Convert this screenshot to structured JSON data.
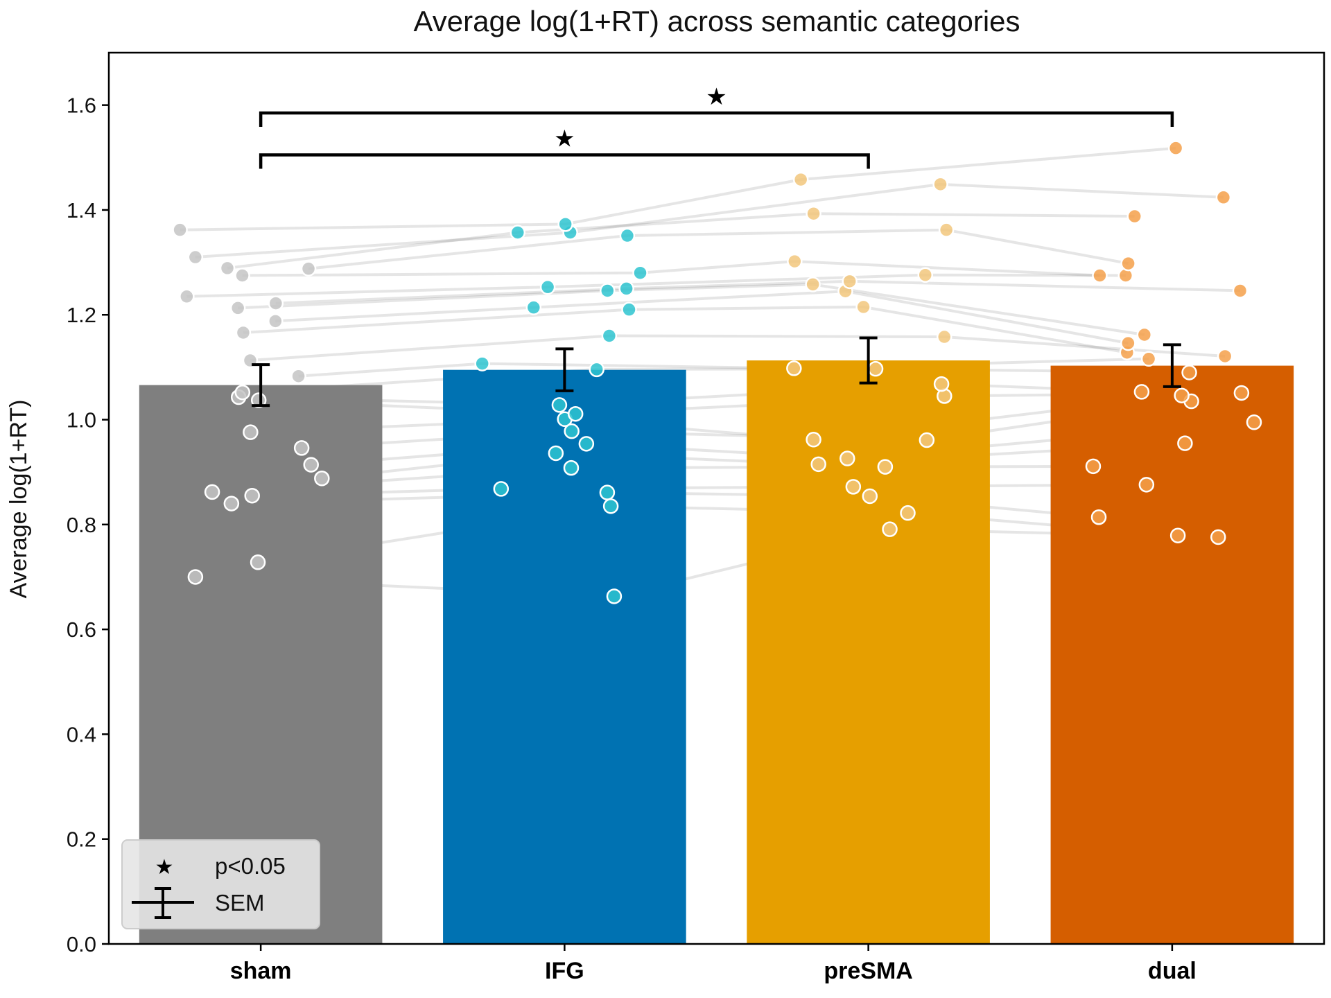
{
  "chart_data": {
    "type": "bar",
    "title": "Average log(1+RT) across semantic categories",
    "xlabel": "",
    "ylabel": "Average log(1+RT)",
    "ylim": [
      0,
      1.7
    ],
    "yticks": [
      "0.0",
      "0.2",
      "0.4",
      "0.6",
      "0.8",
      "1.0",
      "1.2",
      "1.4",
      "1.6"
    ],
    "categories": [
      "sham",
      "IFG",
      "preSMA",
      "dual"
    ],
    "values": [
      1.066,
      1.095,
      1.113,
      1.103
    ],
    "sem": [
      0.039,
      0.04,
      0.043,
      0.04
    ],
    "bar_colors": [
      "#7f7f7f",
      "#0072b2",
      "#e69f00",
      "#d55e00"
    ],
    "point_colors": [
      "#c4c4c4",
      "#2ec4d0",
      "#f2c77c",
      "#f5a04a"
    ],
    "subject_series": {
      "sham": [
        0.7,
        0.728,
        0.84,
        0.855,
        0.862,
        0.888,
        0.914,
        0.946,
        0.976,
        1.037,
        1.043,
        1.052,
        1.083,
        1.113,
        1.166,
        1.188,
        1.213,
        1.222,
        1.235,
        1.275,
        1.288,
        1.289,
        1.31,
        1.362
      ],
      "IFG": [
        0.663,
        0.835,
        0.861,
        0.868,
        0.908,
        0.936,
        0.954,
        0.978,
        1.001,
        1.011,
        1.028,
        1.096,
        1.107,
        1.16,
        1.21,
        1.214,
        1.246,
        1.25,
        1.253,
        1.28,
        1.351,
        1.357,
        1.357,
        1.373
      ],
      "preSMA": [
        0.791,
        0.822,
        0.854,
        0.872,
        0.91,
        0.915,
        0.926,
        0.961,
        0.962,
        1.045,
        1.068,
        1.097,
        1.098,
        1.158,
        1.215,
        1.245,
        1.258,
        1.264,
        1.276,
        1.302,
        1.362,
        1.393,
        1.449,
        1.458
      ],
      "dual": [
        0.776,
        0.779,
        0.814,
        0.876,
        0.911,
        0.955,
        0.995,
        1.035,
        1.046,
        1.051,
        1.053,
        1.09,
        1.116,
        1.121,
        1.128,
        1.146,
        1.162,
        1.246,
        1.275,
        1.275,
        1.298,
        1.388,
        1.424,
        1.518
      ]
    },
    "significance": [
      {
        "from": "sham",
        "to": "preSMA",
        "y": 1.505,
        "marker": "★"
      },
      {
        "from": "sham",
        "to": "dual",
        "y": 1.585,
        "marker": "★"
      }
    ],
    "legend": {
      "position": "bottom-left",
      "entries": [
        {
          "symbol": "star",
          "label": "p<0.05"
        },
        {
          "symbol": "errorbar",
          "label": "SEM"
        }
      ]
    }
  }
}
